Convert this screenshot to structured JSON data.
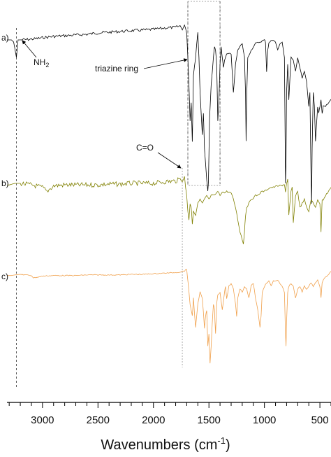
{
  "chart_data": {
    "type": "line",
    "title": "",
    "xlabel": "Wavenumbers (cm",
    "xlabel_sup": "-1",
    "xlabel_tail": ")",
    "xlim": [
      3320,
      400
    ],
    "x_reversed": true,
    "x_ticks": [
      "3000",
      "2500",
      "2000",
      "1500",
      "1000",
      "500"
    ],
    "x_tick_values": [
      3000,
      2500,
      2000,
      1500,
      1000,
      500
    ],
    "grid": false,
    "series": [
      {
        "name": "a)",
        "color": "#000000",
        "x": [
          3320,
          3280,
          3260,
          3235,
          3220,
          3200,
          3100,
          3000,
          2900,
          2800,
          2700,
          2600,
          2500,
          2400,
          2300,
          2200,
          2100,
          2000,
          1900,
          1800,
          1760,
          1740,
          1720,
          1700,
          1690,
          1680,
          1670,
          1660,
          1650,
          1640,
          1620,
          1610,
          1600,
          1590,
          1580,
          1560,
          1550,
          1540,
          1520,
          1510,
          1505,
          1500,
          1495,
          1480,
          1460,
          1450,
          1440,
          1430,
          1420,
          1410,
          1400,
          1390,
          1380,
          1370,
          1360,
          1340,
          1320,
          1300,
          1280,
          1260,
          1240,
          1220,
          1200,
          1180,
          1170,
          1165,
          1160,
          1150,
          1120,
          1080,
          1040,
          1000,
          990,
          980,
          970,
          960,
          940,
          920,
          900,
          880,
          860,
          840,
          820,
          815,
          810,
          805,
          800,
          790,
          780,
          760,
          740,
          720,
          700,
          680,
          660,
          640,
          620,
          600,
          590,
          580,
          575,
          570,
          560,
          550,
          540,
          520,
          510,
          500,
          490,
          480,
          470,
          450,
          420,
          400
        ],
        "y": [
          0.05,
          0.05,
          0.08,
          0.3,
          0.05,
          0.05,
          0.04,
          0.02,
          0.0,
          -0.01,
          -0.02,
          -0.03,
          -0.05,
          -0.06,
          -0.07,
          -0.08,
          -0.09,
          -0.1,
          -0.12,
          -0.13,
          -0.15,
          -0.1,
          -0.16,
          -0.05,
          0.3,
          0.7,
          1.2,
          0.95,
          1.5,
          0.55,
          0.3,
          0.1,
          -0.05,
          0.3,
          0.8,
          1.4,
          1.1,
          1.6,
          2.05,
          2.2,
          2.1,
          1.7,
          1.2,
          0.7,
          0.3,
          0.15,
          0.2,
          0.4,
          1.2,
          0.9,
          0.4,
          0.15,
          0.3,
          0.45,
          0.35,
          0.25,
          0.25,
          0.25,
          0.8,
          0.4,
          0.2,
          0.15,
          0.1,
          0.3,
          0.8,
          1.5,
          0.9,
          0.3,
          0.2,
          0.1,
          0.08,
          0.05,
          0.08,
          0.5,
          0.2,
          0.1,
          0.05,
          0.06,
          0.08,
          0.2,
          0.1,
          0.08,
          0.3,
          1.2,
          2.1,
          1.8,
          0.8,
          0.4,
          0.9,
          0.3,
          0.35,
          0.5,
          0.3,
          0.45,
          0.6,
          0.5,
          0.65,
          1.0,
          0.8,
          2.0,
          2.4,
          1.6,
          0.8,
          1.0,
          1.5,
          1.0,
          1.1,
          1.0,
          0.9,
          1.1,
          1.0,
          1.0,
          0.95,
          0.9
        ]
      },
      {
        "name": "b)",
        "color": "#808000",
        "x": [
          3320,
          3300,
          3250,
          3200,
          3100,
          3000,
          2960,
          2900,
          2800,
          2700,
          2600,
          2500,
          2400,
          2300,
          2200,
          2100,
          2000,
          1900,
          1800,
          1760,
          1740,
          1720,
          1710,
          1700,
          1690,
          1680,
          1670,
          1660,
          1650,
          1640,
          1620,
          1600,
          1580,
          1560,
          1540,
          1520,
          1500,
          1480,
          1450,
          1420,
          1400,
          1380,
          1360,
          1340,
          1300,
          1280,
          1260,
          1240,
          1220,
          1200,
          1190,
          1180,
          1170,
          1160,
          1140,
          1120,
          1100,
          1080,
          1060,
          1040,
          1020,
          1000,
          980,
          960,
          940,
          920,
          900,
          880,
          860,
          840,
          820,
          810,
          800,
          790,
          780,
          760,
          750,
          740,
          720,
          700,
          690,
          680,
          660,
          640,
          620,
          600,
          580,
          560,
          540,
          520,
          500,
          490,
          480,
          470,
          450,
          420,
          400
        ],
        "y": [
          0.02,
          0.02,
          0.0,
          0.0,
          0.02,
          0.05,
          0.1,
          0.03,
          0.02,
          0.02,
          0.02,
          0.02,
          0.01,
          0.01,
          0.0,
          0.0,
          0.0,
          -0.02,
          -0.03,
          -0.05,
          -0.03,
          -0.08,
          0.05,
          0.15,
          0.35,
          0.45,
          0.25,
          0.3,
          0.5,
          0.35,
          0.4,
          0.25,
          0.2,
          0.25,
          0.2,
          0.15,
          0.2,
          0.15,
          0.15,
          0.1,
          0.15,
          0.1,
          0.12,
          0.1,
          0.12,
          0.2,
          0.3,
          0.45,
          0.6,
          0.7,
          0.75,
          0.6,
          0.4,
          0.3,
          0.25,
          0.2,
          0.18,
          0.15,
          0.15,
          0.12,
          0.1,
          0.1,
          0.08,
          0.06,
          0.05,
          0.05,
          0.04,
          0.03,
          0.03,
          0.03,
          0.02,
          0.1,
          0.0,
          -0.05,
          0.4,
          0.1,
          0.05,
          0.5,
          0.15,
          0.1,
          0.2,
          0.3,
          0.25,
          0.2,
          0.3,
          0.35,
          0.2,
          0.25,
          0.3,
          0.2,
          0.25,
          0.6,
          0.2,
          0.2,
          0.15,
          0.1,
          0.05
        ]
      },
      {
        "name": "c)",
        "color": "#F0A04B",
        "x": [
          3320,
          3280,
          3250,
          3200,
          3100,
          3080,
          3000,
          2900,
          2800,
          2700,
          2600,
          2500,
          2400,
          2300,
          2200,
          2100,
          2000,
          1900,
          1800,
          1760,
          1740,
          1720,
          1700,
          1690,
          1680,
          1670,
          1650,
          1640,
          1620,
          1600,
          1580,
          1560,
          1540,
          1530,
          1520,
          1510,
          1500,
          1490,
          1480,
          1470,
          1460,
          1450,
          1440,
          1430,
          1420,
          1400,
          1380,
          1360,
          1350,
          1340,
          1320,
          1300,
          1280,
          1260,
          1250,
          1240,
          1220,
          1200,
          1180,
          1160,
          1140,
          1120,
          1100,
          1080,
          1060,
          1040,
          1030,
          1020,
          1000,
          980,
          960,
          940,
          920,
          900,
          880,
          860,
          840,
          820,
          810,
          805,
          800,
          790,
          780,
          760,
          740,
          720,
          700,
          680,
          660,
          640,
          620,
          600,
          580,
          560,
          540,
          520,
          500,
          490,
          480,
          470,
          450,
          420,
          400
        ],
        "y": [
          0.02,
          0.02,
          0.01,
          0.0,
          0.02,
          0.06,
          0.03,
          0.02,
          0.02,
          0.02,
          0.01,
          0.01,
          0.01,
          0.01,
          0.0,
          0.0,
          -0.01,
          -0.02,
          -0.03,
          -0.04,
          -0.05,
          -0.06,
          -0.08,
          0.1,
          0.3,
          0.5,
          0.7,
          0.4,
          0.9,
          0.5,
          0.3,
          0.4,
          0.9,
          0.7,
          0.6,
          1.2,
          1.0,
          1.5,
          1.2,
          0.8,
          0.5,
          0.6,
          1.0,
          0.5,
          0.35,
          0.3,
          0.6,
          0.3,
          0.2,
          0.4,
          0.2,
          0.15,
          0.25,
          0.5,
          0.7,
          0.4,
          0.25,
          0.3,
          0.2,
          0.25,
          0.4,
          0.2,
          0.15,
          0.4,
          0.6,
          0.9,
          0.7,
          0.3,
          0.2,
          0.15,
          0.1,
          0.2,
          0.1,
          0.12,
          0.1,
          0.15,
          0.2,
          0.3,
          1.0,
          1.2,
          0.8,
          0.3,
          0.2,
          0.15,
          0.2,
          0.4,
          0.25,
          0.2,
          0.3,
          0.2,
          0.25,
          0.2,
          0.15,
          0.2,
          0.15,
          0.1,
          0.2,
          0.4,
          0.15,
          0.1,
          0.05,
          0.0,
          -0.05
        ]
      }
    ],
    "annotations": [
      {
        "text": "NH",
        "sub": "2",
        "target_x": 3235,
        "series": 0
      },
      {
        "text": "triazine ring",
        "target_x": 1630,
        "series": 0
      },
      {
        "text": "C=O",
        "target_x": 1720,
        "series": 1
      }
    ],
    "reference_lines": [
      3235,
      1690,
      1400,
      1740
    ],
    "highlight_box": {
      "x_from": 1690,
      "x_to": 1400,
      "series": 0
    }
  }
}
